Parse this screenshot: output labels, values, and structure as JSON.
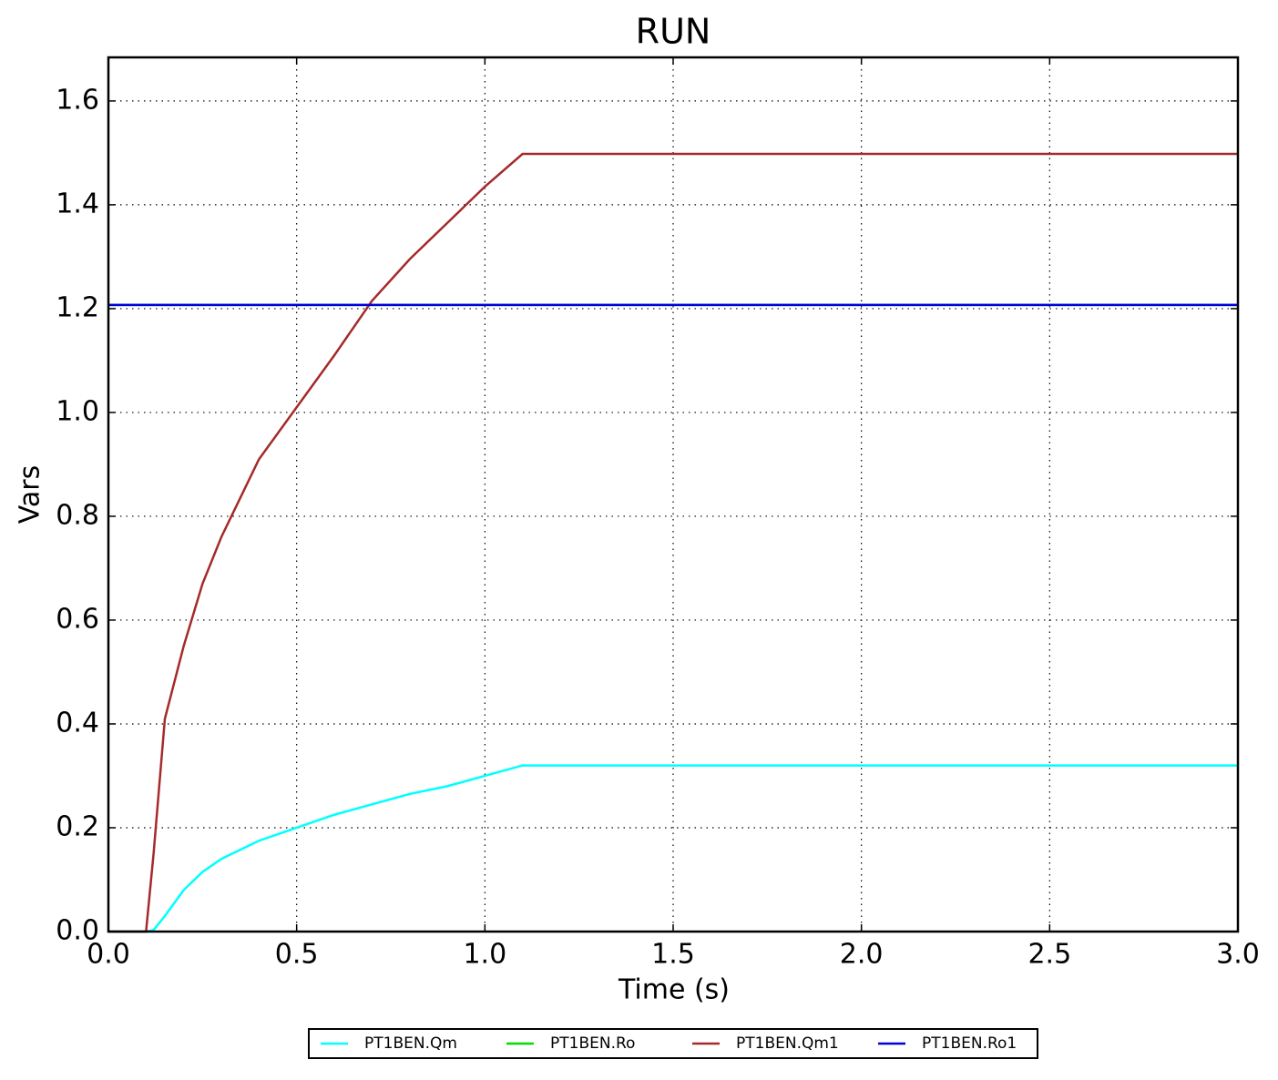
{
  "chart_data": {
    "type": "line",
    "title": "RUN",
    "x_label": "Time (s)",
    "y_label": "Vars",
    "x": [
      0,
      0.1,
      0.12,
      0.15,
      0.2,
      0.25,
      0.3,
      0.4,
      0.5,
      0.6,
      0.7,
      0.8,
      0.9,
      1.0,
      1.1,
      1.2,
      1.5,
      2.0,
      2.5,
      3.0
    ],
    "series": [
      {
        "name": "PT1BEN.Qm",
        "color": "#00ffff",
        "values": [
          0,
          0,
          0.003,
          0.03,
          0.08,
          0.115,
          0.14,
          0.175,
          0.2,
          0.225,
          0.245,
          0.265,
          0.28,
          0.3,
          0.32,
          0.32,
          0.32,
          0.32,
          0.32,
          0.32
        ]
      },
      {
        "name": "PT1BEN.Ro",
        "color": "#00dd00",
        "values": [
          1.207,
          1.207,
          1.207,
          1.207,
          1.207,
          1.207,
          1.207,
          1.207,
          1.207,
          1.207,
          1.207,
          1.207,
          1.207,
          1.207,
          1.207,
          1.207,
          1.207,
          1.207,
          1.207,
          1.207
        ]
      },
      {
        "name": "PT1BEN.Qm1",
        "color": "#a52a2a",
        "values": [
          0,
          0,
          0.15,
          0.41,
          0.55,
          0.67,
          0.76,
          0.91,
          1.01,
          1.11,
          1.215,
          1.295,
          1.365,
          1.435,
          1.498,
          1.498,
          1.498,
          1.498,
          1.498,
          1.498
        ]
      },
      {
        "name": "PT1BEN.Ro1",
        "color": "#0000dd",
        "values": [
          1.207,
          1.207,
          1.207,
          1.207,
          1.207,
          1.207,
          1.207,
          1.207,
          1.207,
          1.207,
          1.207,
          1.207,
          1.207,
          1.207,
          1.207,
          1.207,
          1.207,
          1.207,
          1.207,
          1.207
        ]
      }
    ],
    "xlim": [
      0,
      3.0
    ],
    "ylim": [
      0,
      1.684
    ],
    "xticks": [
      {
        "value": 0,
        "label": "0.0"
      },
      0.5,
      {
        "value": 1,
        "label": "1.0"
      },
      1.5,
      {
        "value": 2,
        "label": "2.0"
      },
      2.5,
      {
        "value": 3,
        "label": "3.0"
      }
    ],
    "yticks": [
      {
        "value": 0,
        "label": "0.0"
      },
      0.2,
      0.4,
      0.6,
      0.8,
      {
        "value": 1,
        "label": "1.0"
      },
      1.2,
      1.4,
      1.6
    ],
    "grid": true,
    "legend": "bottom"
  }
}
